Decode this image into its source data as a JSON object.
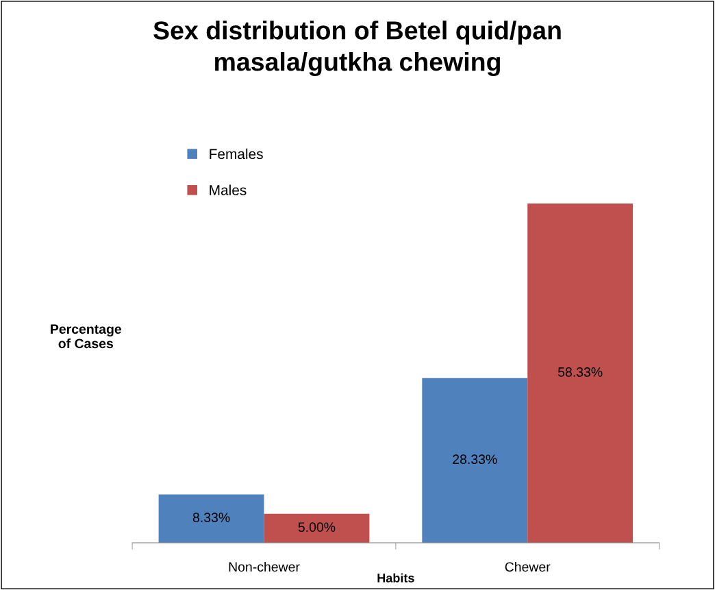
{
  "chart_data": {
    "type": "bar",
    "title": "Sex distribution of Betel quid/pan\nmasala/gutkha chewing",
    "xlabel": "Habits",
    "ylabel": "Percentage\nof Cases",
    "categories": [
      "Non-chewer",
      "Chewer"
    ],
    "series": [
      {
        "name": "Females",
        "color": "#4f81bd",
        "values": [
          8.33,
          28.33
        ],
        "value_labels": [
          "8.33%",
          "28.33%"
        ]
      },
      {
        "name": "Males",
        "color": "#c0504d",
        "values": [
          5.0,
          58.33
        ],
        "value_labels": [
          "5.00%",
          "58.33%"
        ]
      }
    ],
    "legend": "top left",
    "grid": false
  }
}
